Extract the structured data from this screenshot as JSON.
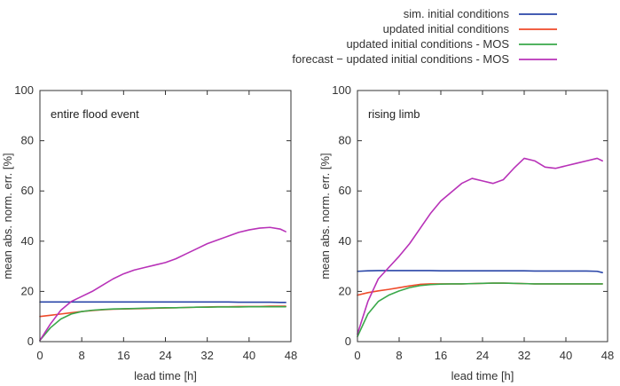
{
  "legend": [
    {
      "label": "sim. initial conditions",
      "color": "#2a46a8"
    },
    {
      "label": "updated initial conditions",
      "color": "#ef4a2a"
    },
    {
      "label": "updated initial conditions - MOS",
      "color": "#3aa84a"
    },
    {
      "label": "forecast − updated initial conditions - MOS",
      "color": "#b832b8"
    }
  ],
  "chart_data": [
    {
      "type": "line",
      "title": "entire flood event",
      "xlabel": "lead time [h]",
      "ylabel": "mean abs. norm. err. [%]",
      "xlim": [
        0,
        48
      ],
      "ylim": [
        0,
        100
      ],
      "xticks": [
        0,
        8,
        16,
        24,
        32,
        40,
        48
      ],
      "yticks": [
        0,
        20,
        40,
        60,
        80,
        100
      ],
      "x": [
        0,
        2,
        4,
        6,
        8,
        10,
        12,
        14,
        16,
        18,
        20,
        22,
        24,
        26,
        28,
        30,
        32,
        34,
        36,
        38,
        40,
        42,
        44,
        46,
        47
      ],
      "series": [
        {
          "name": "sim. initial conditions",
          "color": "#2a46a8",
          "values": [
            15.8,
            15.8,
            15.8,
            15.8,
            15.8,
            15.8,
            15.8,
            15.8,
            15.8,
            15.8,
            15.8,
            15.8,
            15.8,
            15.8,
            15.8,
            15.8,
            15.8,
            15.8,
            15.8,
            15.7,
            15.7,
            15.7,
            15.7,
            15.6,
            15.6
          ]
        },
        {
          "name": "updated initial conditions",
          "color": "#ef4a2a",
          "values": [
            10.0,
            10.5,
            11.0,
            11.5,
            12.0,
            12.4,
            12.7,
            12.9,
            13.0,
            13.1,
            13.2,
            13.3,
            13.4,
            13.5,
            13.6,
            13.7,
            13.8,
            13.9,
            13.9,
            14.0,
            14.0,
            14.0,
            14.1,
            14.1,
            14.1
          ]
        },
        {
          "name": "updated initial conditions - MOS",
          "color": "#3aa84a",
          "values": [
            0.5,
            5.5,
            9.0,
            11.0,
            12.0,
            12.5,
            12.8,
            13.0,
            13.1,
            13.2,
            13.3,
            13.4,
            13.5,
            13.5,
            13.6,
            13.7,
            13.7,
            13.8,
            13.8,
            13.8,
            13.9,
            13.9,
            13.9,
            13.9,
            13.9
          ]
        },
        {
          "name": "forecast − updated initial conditions - MOS",
          "color": "#b832b8",
          "values": [
            0.5,
            7.0,
            12.5,
            16.0,
            18.0,
            20.0,
            22.5,
            25.0,
            27.0,
            28.5,
            29.5,
            30.5,
            31.5,
            33.0,
            35.0,
            37.0,
            39.0,
            40.5,
            42.0,
            43.5,
            44.5,
            45.2,
            45.5,
            44.8,
            43.8
          ]
        }
      ]
    },
    {
      "type": "line",
      "title": "rising limb",
      "xlabel": "lead time [h]",
      "ylabel": "mean abs. norm. err. [%]",
      "xlim": [
        0,
        48
      ],
      "ylim": [
        0,
        100
      ],
      "xticks": [
        0,
        8,
        16,
        24,
        32,
        40,
        48
      ],
      "yticks": [
        0,
        20,
        40,
        60,
        80,
        100
      ],
      "x": [
        0,
        2,
        4,
        6,
        8,
        10,
        12,
        14,
        16,
        18,
        20,
        22,
        24,
        26,
        28,
        30,
        32,
        34,
        36,
        38,
        40,
        42,
        44,
        46,
        47
      ],
      "series": [
        {
          "name": "sim. initial conditions",
          "color": "#2a46a8",
          "values": [
            28.0,
            28.2,
            28.3,
            28.3,
            28.3,
            28.3,
            28.3,
            28.3,
            28.2,
            28.2,
            28.2,
            28.2,
            28.2,
            28.2,
            28.2,
            28.2,
            28.2,
            28.1,
            28.1,
            28.1,
            28.1,
            28.1,
            28.1,
            28.0,
            27.5
          ]
        },
        {
          "name": "updated initial conditions",
          "color": "#ef4a2a",
          "values": [
            18.5,
            19.5,
            20.2,
            20.8,
            21.5,
            22.2,
            22.8,
            23.0,
            23.0,
            23.0,
            23.0,
            23.1,
            23.2,
            23.3,
            23.3,
            23.2,
            23.1,
            23.0,
            23.0,
            23.0,
            23.0,
            23.0,
            23.0,
            23.0,
            23.0
          ]
        },
        {
          "name": "updated initial conditions - MOS",
          "color": "#3aa84a",
          "values": [
            2.0,
            11.0,
            16.0,
            18.5,
            20.2,
            21.5,
            22.3,
            22.7,
            22.9,
            23.0,
            23.0,
            23.1,
            23.2,
            23.3,
            23.3,
            23.2,
            23.1,
            23.0,
            23.0,
            23.0,
            23.0,
            23.0,
            23.0,
            23.0,
            23.0
          ]
        },
        {
          "name": "forecast − updated initial conditions - MOS",
          "color": "#b832b8",
          "values": [
            3.0,
            16.0,
            25.0,
            29.5,
            34.0,
            39.0,
            45.0,
            51.0,
            56.0,
            59.5,
            63.0,
            65.0,
            64.0,
            63.0,
            64.5,
            69.0,
            73.0,
            72.0,
            69.5,
            69.0,
            70.0,
            71.0,
            72.0,
            73.0,
            72.0
          ]
        }
      ]
    }
  ]
}
